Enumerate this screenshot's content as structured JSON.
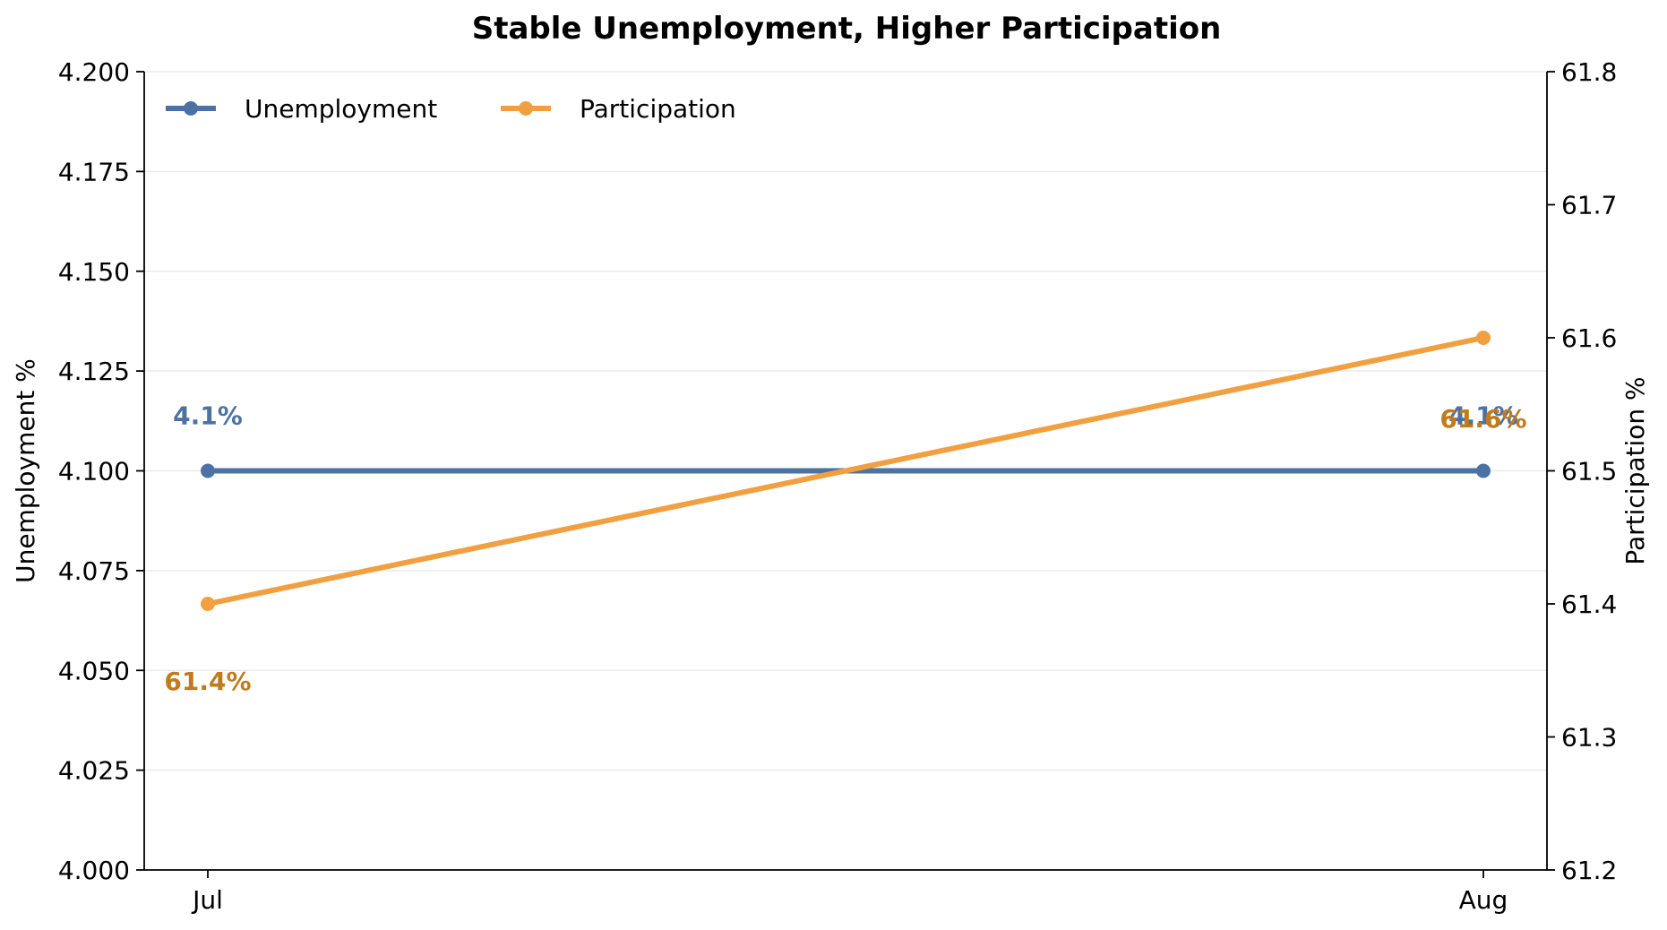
{
  "chart_data": {
    "type": "line",
    "title": "Stable Unemployment, Higher Participation",
    "categories": [
      "Jul",
      "Aug"
    ],
    "y_left": {
      "label": "Unemployment %",
      "lim": [
        4.0,
        4.2
      ],
      "ticks": [
        "4.000",
        "4.025",
        "4.050",
        "4.075",
        "4.100",
        "4.125",
        "4.150",
        "4.175",
        "4.200"
      ],
      "tick_values": [
        4.0,
        4.025,
        4.05,
        4.075,
        4.1,
        4.125,
        4.15,
        4.175,
        4.2
      ]
    },
    "y_right": {
      "label": "Participation %",
      "lim": [
        61.2,
        61.8
      ],
      "ticks": [
        "61.2",
        "61.3",
        "61.4",
        "61.5",
        "61.6",
        "61.7",
        "61.8"
      ],
      "tick_values": [
        61.2,
        61.3,
        61.4,
        61.5,
        61.6,
        61.7,
        61.8
      ]
    },
    "grid": "horizontal",
    "legend_position": "top-left",
    "series": [
      {
        "name": "Unemployment",
        "axis": "left",
        "color": "#4c72a4",
        "label_color": "#4c72a4",
        "values": [
          4.1,
          4.1
        ],
        "data_labels": [
          "4.1%",
          "4.1%"
        ]
      },
      {
        "name": "Participation",
        "axis": "right",
        "color": "#f0a040",
        "label_color": "#c07c1c",
        "values": [
          61.4,
          61.6
        ],
        "data_labels": [
          "61.4%",
          "61.6%"
        ]
      }
    ]
  }
}
